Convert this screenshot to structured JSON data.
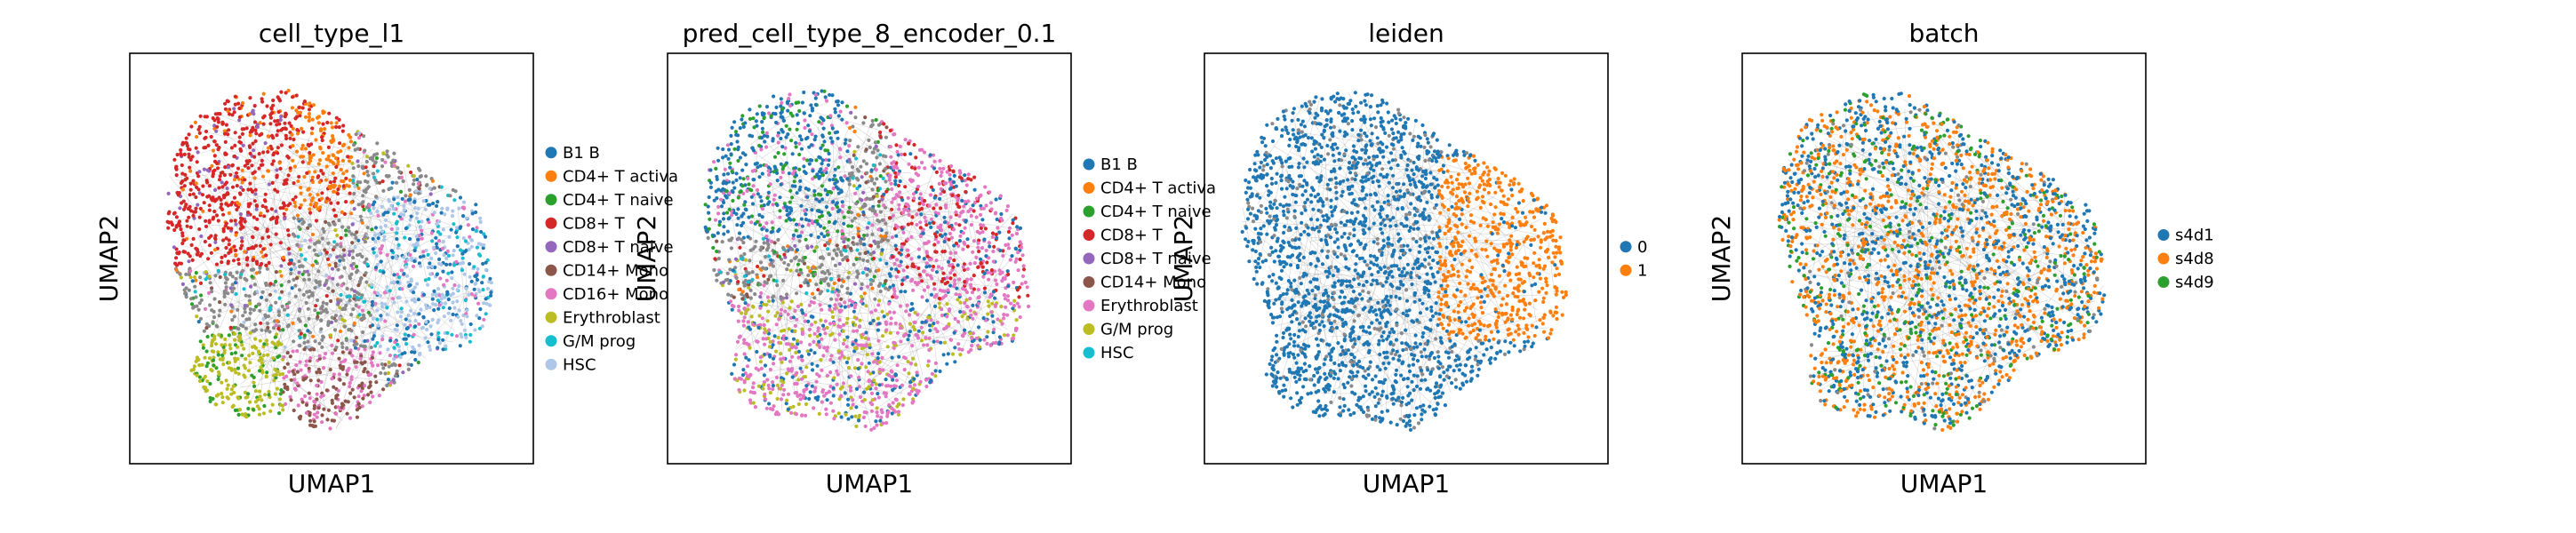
{
  "chart_data": [
    {
      "type": "scatter",
      "title": "cell_type_l1",
      "xlabel": "UMAP1",
      "ylabel": "UMAP2",
      "grid": false,
      "legend": {
        "placement": "right",
        "entries": [
          {
            "label": "B1 B",
            "color": "#1f77b4"
          },
          {
            "label": "CD4+ T activa",
            "color": "#ff7f0e"
          },
          {
            "label": "CD4+ T naive",
            "color": "#2ca02c"
          },
          {
            "label": "CD8+ T",
            "color": "#d62728"
          },
          {
            "label": "CD8+ T naive",
            "color": "#9467bd"
          },
          {
            "label": "CD14+ Mono",
            "color": "#8c564b"
          },
          {
            "label": "CD16+ Mono",
            "color": "#e377c2"
          },
          {
            "label": "Erythroblast",
            "color": "#bcbd22"
          },
          {
            "label": "G/M prog",
            "color": "#17becf"
          },
          {
            "label": "HSC",
            "color": "#aec7e8"
          }
        ]
      }
    },
    {
      "type": "scatter",
      "title": "pred_cell_type_8_encoder_0.1",
      "xlabel": "UMAP1",
      "ylabel": "UMAP2",
      "grid": false,
      "legend": {
        "placement": "right",
        "entries": [
          {
            "label": "B1 B",
            "color": "#1f77b4"
          },
          {
            "label": "CD4+ T activa",
            "color": "#ff7f0e"
          },
          {
            "label": "CD4+ T naive",
            "color": "#2ca02c"
          },
          {
            "label": "CD8+ T",
            "color": "#d62728"
          },
          {
            "label": "CD8+ T naive",
            "color": "#9467bd"
          },
          {
            "label": "CD14+ Mono",
            "color": "#8c564b"
          },
          {
            "label": "Erythroblast",
            "color": "#e377c2"
          },
          {
            "label": "G/M prog",
            "color": "#bcbd22"
          },
          {
            "label": "HSC",
            "color": "#17becf"
          }
        ]
      }
    },
    {
      "type": "scatter",
      "title": "leiden",
      "xlabel": "UMAP1",
      "ylabel": "UMAP2",
      "grid": false,
      "legend": {
        "placement": "right",
        "entries": [
          {
            "label": "0",
            "color": "#1f77b4"
          },
          {
            "label": "1",
            "color": "#ff7f0e"
          }
        ]
      }
    },
    {
      "type": "scatter",
      "title": "batch",
      "xlabel": "UMAP1",
      "ylabel": "UMAP2",
      "grid": false,
      "legend": {
        "placement": "right",
        "entries": [
          {
            "label": "s4d1",
            "color": "#1f77b4"
          },
          {
            "label": "s4d8",
            "color": "#ff7f0e"
          },
          {
            "label": "s4d9",
            "color": "#2ca02c"
          }
        ]
      }
    }
  ],
  "background_edges_color": "#8a8a8a"
}
